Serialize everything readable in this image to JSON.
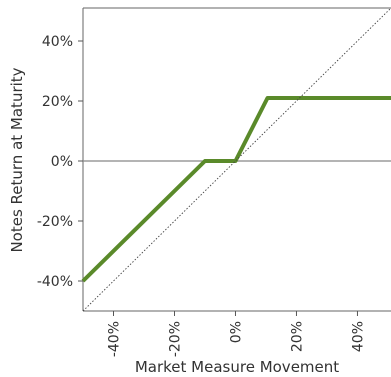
{
  "chart_data": {
    "type": "line",
    "title": "",
    "xlabel": "Market Measure Movement",
    "ylabel": "Notes Return at Maturity",
    "xlim": [
      -50,
      51
    ],
    "ylim": [
      -50,
      51
    ],
    "x_ticks": [
      -40,
      -20,
      0,
      20,
      40
    ],
    "x_tick_labels": [
      "-40%",
      "-20%",
      "0%",
      "20%",
      "40%"
    ],
    "y_ticks": [
      -40,
      -20,
      0,
      20,
      40
    ],
    "y_tick_labels": [
      "-40%",
      "-20%",
      "0%",
      "20%",
      "40%"
    ],
    "grid": false,
    "legend": "none",
    "series": [
      {
        "color": "#5a8a2a",
        "x": [
          -50,
          -10,
          0,
          10.5,
          51
        ],
        "y": [
          -40,
          0,
          0,
          21,
          21
        ]
      },
      {
        "color": "#444444",
        "style": "dotted",
        "x": [
          -50,
          51
        ],
        "y": [
          -50,
          51
        ]
      }
    ],
    "reference_lines": [
      {
        "axis": "y",
        "value": 0,
        "color": "#888888"
      }
    ]
  }
}
